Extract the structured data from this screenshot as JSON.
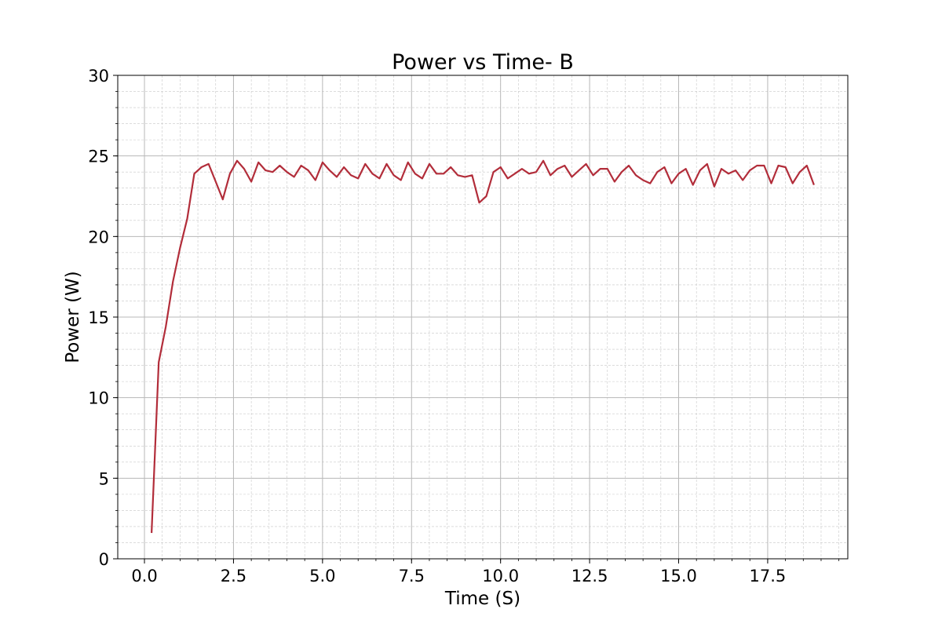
{
  "chart_data": {
    "type": "line",
    "title": "Power vs Time- B",
    "xlabel": "Time (S)",
    "ylabel": "Power (W)",
    "xlim": [
      -0.75,
      19.75
    ],
    "ylim": [
      0,
      30
    ],
    "x_ticks": [
      0.0,
      2.5,
      5.0,
      7.5,
      10.0,
      12.5,
      15.0,
      17.5
    ],
    "x_tick_labels": [
      "0.0",
      "2.5",
      "5.0",
      "7.5",
      "10.0",
      "12.5",
      "15.0",
      "17.5"
    ],
    "y_ticks": [
      0,
      5,
      10,
      15,
      20,
      25,
      30
    ],
    "y_tick_labels": [
      "0",
      "5",
      "10",
      "15",
      "20",
      "25",
      "30"
    ],
    "grid": true,
    "minor_grid": true,
    "legend": "none",
    "series": [
      {
        "color": "#b22d3a",
        "x": [
          0.2,
          0.4,
          0.6,
          0.8,
          1.0,
          1.2,
          1.4,
          1.6,
          1.8,
          2.0,
          2.2,
          2.4,
          2.6,
          2.8,
          3.0,
          3.2,
          3.4,
          3.6,
          3.8,
          4.0,
          4.2,
          4.4,
          4.6,
          4.8,
          5.0,
          5.2,
          5.4,
          5.6,
          5.8,
          6.0,
          6.2,
          6.4,
          6.6,
          6.8,
          7.0,
          7.2,
          7.4,
          7.6,
          7.8,
          8.0,
          8.2,
          8.4,
          8.6,
          8.8,
          9.0,
          9.2,
          9.4,
          9.6,
          9.8,
          10.0,
          10.2,
          10.4,
          10.6,
          10.8,
          11.0,
          11.2,
          11.4,
          11.6,
          11.8,
          12.0,
          12.2,
          12.4,
          12.6,
          12.8,
          13.0,
          13.2,
          13.4,
          13.6,
          13.8,
          14.0,
          14.2,
          14.4,
          14.6,
          14.8,
          15.0,
          15.2,
          15.4,
          15.6,
          15.8,
          16.0,
          16.2,
          16.4,
          16.6,
          16.8,
          17.0,
          17.2,
          17.4,
          17.6,
          17.8,
          18.0,
          18.2,
          18.4,
          18.6,
          18.8
        ],
        "y": [
          1.6,
          12.2,
          14.4,
          17.2,
          19.3,
          21.1,
          23.9,
          24.3,
          24.5,
          23.4,
          22.3,
          23.9,
          24.7,
          24.2,
          23.4,
          24.6,
          24.1,
          24.0,
          24.4,
          24.0,
          23.7,
          24.4,
          24.1,
          23.5,
          24.6,
          24.1,
          23.7,
          24.3,
          23.8,
          23.6,
          24.5,
          23.9,
          23.6,
          24.5,
          23.8,
          23.5,
          24.6,
          23.9,
          23.6,
          24.5,
          23.9,
          23.9,
          24.3,
          23.8,
          23.7,
          23.8,
          22.1,
          22.5,
          24.0,
          24.3,
          23.6,
          23.9,
          24.2,
          23.9,
          24.0,
          24.7,
          23.8,
          24.2,
          24.4,
          23.7,
          24.1,
          24.5,
          23.8,
          24.2,
          24.2,
          23.4,
          24.0,
          24.4,
          23.8,
          23.5,
          23.3,
          24.0,
          24.3,
          23.3,
          23.9,
          24.2,
          23.2,
          24.1,
          24.5,
          23.1,
          24.2,
          23.9,
          24.1,
          23.5,
          24.1,
          24.4,
          24.4,
          23.3,
          24.4,
          24.3,
          23.3,
          24.0,
          24.4,
          23.2
        ]
      }
    ]
  }
}
